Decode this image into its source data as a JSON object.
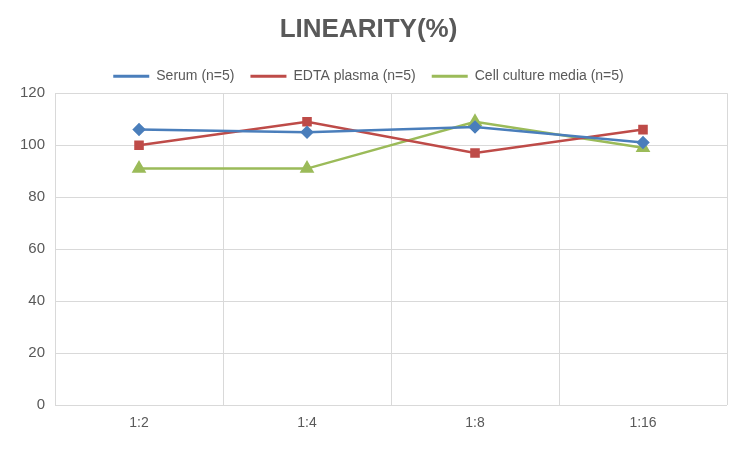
{
  "chart_data": {
    "type": "line",
    "title": "LINEARITY(%)",
    "categories": [
      "1:2",
      "1:4",
      "1:8",
      "1:16"
    ],
    "series": [
      {
        "name": "Serum (n=5)",
        "color": "#4a7ebb",
        "marker": "diamond",
        "line_style": "solid",
        "values": [
          106,
          105,
          107,
          101
        ]
      },
      {
        "name": "EDTA plasma (n=5)",
        "color": "#be4b48",
        "marker": "square",
        "line_style": "solid",
        "values": [
          100,
          109,
          97,
          106
        ]
      },
      {
        "name": "Cell culture media (n=5)",
        "color": "#9bbb59",
        "marker": "triangle",
        "line_style": "solid",
        "values": [
          91,
          91,
          109,
          99
        ]
      }
    ],
    "ylim": [
      0,
      120
    ],
    "yticks": [
      0,
      20,
      40,
      60,
      80,
      100,
      120
    ],
    "grid": true,
    "legend": "top"
  }
}
